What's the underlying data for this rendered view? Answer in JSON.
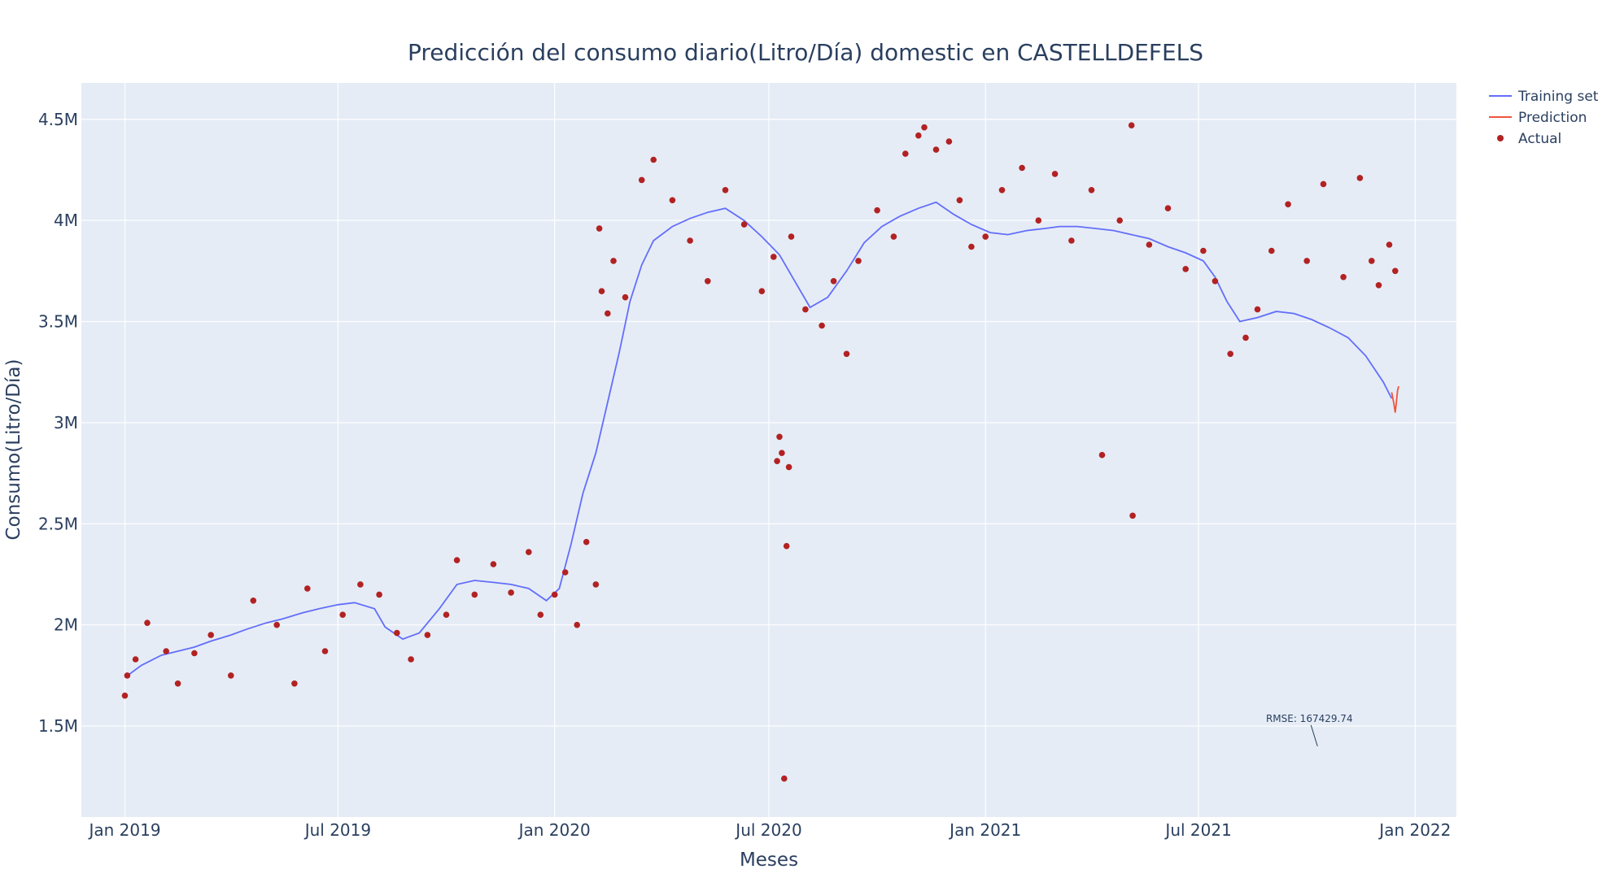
{
  "chart_data": {
    "type": "line",
    "title": "Predicción del consumo diario(Litro/Día) domestic en CASTELLDEFELS",
    "xlabel": "Meses",
    "ylabel": "Consumo(Litro/Día)",
    "x_range": [
      "2018-11-25",
      "2022-02-05"
    ],
    "y_range": [
      1050000,
      4680000
    ],
    "x_ticks": [
      {
        "date": "2019-01-01",
        "label": "Jan 2019"
      },
      {
        "date": "2019-07-01",
        "label": "Jul 2019"
      },
      {
        "date": "2020-01-01",
        "label": "Jan 2020"
      },
      {
        "date": "2020-07-01",
        "label": "Jul 2020"
      },
      {
        "date": "2021-01-01",
        "label": "Jan 2021"
      },
      {
        "date": "2021-07-01",
        "label": "Jul 2021"
      },
      {
        "date": "2022-01-01",
        "label": "Jan 2022"
      }
    ],
    "y_ticks": [
      {
        "value": 1500000,
        "label": "1.5M"
      },
      {
        "value": 2000000,
        "label": "2M"
      },
      {
        "value": 2500000,
        "label": "2.5M"
      },
      {
        "value": 3000000,
        "label": "3M"
      },
      {
        "value": 3500000,
        "label": "3.5M"
      },
      {
        "value": 4000000,
        "label": "4M"
      },
      {
        "value": 4500000,
        "label": "4.5M"
      }
    ],
    "grid": true,
    "legend_position": "top-right",
    "series": [
      {
        "name": "Training set",
        "mode": "lines",
        "color": "#636efa",
        "points": [
          [
            "2019-01-01",
            1740000
          ],
          [
            "2019-01-15",
            1800000
          ],
          [
            "2019-02-01",
            1850000
          ],
          [
            "2019-02-15",
            1870000
          ],
          [
            "2019-03-01",
            1890000
          ],
          [
            "2019-03-15",
            1920000
          ],
          [
            "2019-04-01",
            1950000
          ],
          [
            "2019-04-15",
            1980000
          ],
          [
            "2019-05-01",
            2010000
          ],
          [
            "2019-05-15",
            2030000
          ],
          [
            "2019-06-01",
            2060000
          ],
          [
            "2019-06-15",
            2080000
          ],
          [
            "2019-07-01",
            2100000
          ],
          [
            "2019-07-15",
            2110000
          ],
          [
            "2019-08-01",
            2080000
          ],
          [
            "2019-08-10",
            1990000
          ],
          [
            "2019-08-25",
            1930000
          ],
          [
            "2019-09-08",
            1960000
          ],
          [
            "2019-09-25",
            2080000
          ],
          [
            "2019-10-10",
            2200000
          ],
          [
            "2019-10-25",
            2220000
          ],
          [
            "2019-11-10",
            2210000
          ],
          [
            "2019-11-25",
            2200000
          ],
          [
            "2019-12-10",
            2180000
          ],
          [
            "2019-12-25",
            2120000
          ],
          [
            "2020-01-05",
            2180000
          ],
          [
            "2020-01-15",
            2400000
          ],
          [
            "2020-01-25",
            2650000
          ],
          [
            "2020-02-05",
            2850000
          ],
          [
            "2020-02-15",
            3100000
          ],
          [
            "2020-02-25",
            3350000
          ],
          [
            "2020-03-05",
            3600000
          ],
          [
            "2020-03-15",
            3780000
          ],
          [
            "2020-03-25",
            3900000
          ],
          [
            "2020-04-10",
            3970000
          ],
          [
            "2020-04-25",
            4010000
          ],
          [
            "2020-05-10",
            4040000
          ],
          [
            "2020-05-25",
            4060000
          ],
          [
            "2020-06-10",
            4000000
          ],
          [
            "2020-06-25",
            3920000
          ],
          [
            "2020-07-10",
            3830000
          ],
          [
            "2020-07-25",
            3680000
          ],
          [
            "2020-08-05",
            3570000
          ],
          [
            "2020-08-20",
            3620000
          ],
          [
            "2020-09-05",
            3750000
          ],
          [
            "2020-09-20",
            3890000
          ],
          [
            "2020-10-05",
            3970000
          ],
          [
            "2020-10-20",
            4020000
          ],
          [
            "2020-11-05",
            4060000
          ],
          [
            "2020-11-20",
            4090000
          ],
          [
            "2020-12-05",
            4030000
          ],
          [
            "2020-12-20",
            3980000
          ],
          [
            "2021-01-05",
            3940000
          ],
          [
            "2021-01-20",
            3930000
          ],
          [
            "2021-02-05",
            3950000
          ],
          [
            "2021-02-20",
            3960000
          ],
          [
            "2021-03-05",
            3970000
          ],
          [
            "2021-03-20",
            3970000
          ],
          [
            "2021-04-05",
            3960000
          ],
          [
            "2021-04-20",
            3950000
          ],
          [
            "2021-05-05",
            3930000
          ],
          [
            "2021-05-20",
            3910000
          ],
          [
            "2021-06-05",
            3870000
          ],
          [
            "2021-06-20",
            3840000
          ],
          [
            "2021-07-05",
            3800000
          ],
          [
            "2021-07-15",
            3720000
          ],
          [
            "2021-07-25",
            3600000
          ],
          [
            "2021-08-05",
            3500000
          ],
          [
            "2021-08-20",
            3520000
          ],
          [
            "2021-09-05",
            3550000
          ],
          [
            "2021-09-20",
            3540000
          ],
          [
            "2021-10-05",
            3510000
          ],
          [
            "2021-10-20",
            3470000
          ],
          [
            "2021-11-05",
            3420000
          ],
          [
            "2021-11-20",
            3330000
          ],
          [
            "2021-12-05",
            3200000
          ],
          [
            "2021-12-12",
            3120000
          ]
        ]
      },
      {
        "name": "Prediction",
        "mode": "lines",
        "color": "#ef553b",
        "points": [
          [
            "2021-12-12",
            3150000
          ],
          [
            "2021-12-13",
            3120000
          ],
          [
            "2021-12-14",
            3090000
          ],
          [
            "2021-12-15",
            3050000
          ],
          [
            "2021-12-16",
            3100000
          ],
          [
            "2021-12-17",
            3160000
          ],
          [
            "2021-12-18",
            3180000
          ]
        ]
      },
      {
        "name": "Actual",
        "mode": "markers",
        "color": "#b22222",
        "points": [
          [
            "2019-01-01",
            1650000
          ],
          [
            "2019-01-03",
            1750000
          ],
          [
            "2019-01-10",
            1830000
          ],
          [
            "2019-01-20",
            2010000
          ],
          [
            "2019-02-05",
            1870000
          ],
          [
            "2019-02-15",
            1710000
          ],
          [
            "2019-03-01",
            1860000
          ],
          [
            "2019-03-15",
            1950000
          ],
          [
            "2019-04-01",
            1750000
          ],
          [
            "2019-04-20",
            2120000
          ],
          [
            "2019-05-10",
            2000000
          ],
          [
            "2019-05-25",
            1710000
          ],
          [
            "2019-06-05",
            2180000
          ],
          [
            "2019-06-20",
            1870000
          ],
          [
            "2019-07-05",
            2050000
          ],
          [
            "2019-07-20",
            2200000
          ],
          [
            "2019-08-05",
            2150000
          ],
          [
            "2019-08-20",
            1960000
          ],
          [
            "2019-09-01",
            1830000
          ],
          [
            "2019-09-15",
            1950000
          ],
          [
            "2019-10-01",
            2050000
          ],
          [
            "2019-10-10",
            2320000
          ],
          [
            "2019-10-25",
            2150000
          ],
          [
            "2019-11-10",
            2300000
          ],
          [
            "2019-11-25",
            2160000
          ],
          [
            "2019-12-10",
            2360000
          ],
          [
            "2019-12-20",
            2050000
          ],
          [
            "2020-01-01",
            2150000
          ],
          [
            "2020-01-10",
            2260000
          ],
          [
            "2020-01-20",
            2000000
          ],
          [
            "2020-01-28",
            2410000
          ],
          [
            "2020-02-05",
            2200000
          ],
          [
            "2020-02-08",
            3960000
          ],
          [
            "2020-02-10",
            3650000
          ],
          [
            "2020-02-15",
            3540000
          ],
          [
            "2020-02-20",
            3800000
          ],
          [
            "2020-03-01",
            3620000
          ],
          [
            "2020-03-15",
            4200000
          ],
          [
            "2020-03-25",
            4300000
          ],
          [
            "2020-04-10",
            4100000
          ],
          [
            "2020-04-25",
            3900000
          ],
          [
            "2020-05-10",
            3700000
          ],
          [
            "2020-05-25",
            4150000
          ],
          [
            "2020-06-10",
            3980000
          ],
          [
            "2020-06-25",
            3650000
          ],
          [
            "2020-07-05",
            3820000
          ],
          [
            "2020-07-08",
            2810000
          ],
          [
            "2020-07-10",
            2930000
          ],
          [
            "2020-07-12",
            2850000
          ],
          [
            "2020-07-14",
            1240000
          ],
          [
            "2020-07-16",
            2390000
          ],
          [
            "2020-07-18",
            2780000
          ],
          [
            "2020-07-20",
            3920000
          ],
          [
            "2020-08-01",
            3560000
          ],
          [
            "2020-08-15",
            3480000
          ],
          [
            "2020-08-25",
            3700000
          ],
          [
            "2020-09-05",
            3340000
          ],
          [
            "2020-09-15",
            3800000
          ],
          [
            "2020-10-01",
            4050000
          ],
          [
            "2020-10-15",
            3920000
          ],
          [
            "2020-10-25",
            4330000
          ],
          [
            "2020-11-05",
            4420000
          ],
          [
            "2020-11-10",
            4460000
          ],
          [
            "2020-11-20",
            4350000
          ],
          [
            "2020-12-01",
            4390000
          ],
          [
            "2020-12-10",
            4100000
          ],
          [
            "2020-12-20",
            3870000
          ],
          [
            "2021-01-01",
            3920000
          ],
          [
            "2021-01-15",
            4150000
          ],
          [
            "2021-02-01",
            4260000
          ],
          [
            "2021-02-15",
            4000000
          ],
          [
            "2021-03-01",
            4230000
          ],
          [
            "2021-03-15",
            3900000
          ],
          [
            "2021-04-01",
            4150000
          ],
          [
            "2021-04-10",
            2840000
          ],
          [
            "2021-04-25",
            4000000
          ],
          [
            "2021-05-05",
            4470000
          ],
          [
            "2021-05-06",
            2540000
          ],
          [
            "2021-05-20",
            3880000
          ],
          [
            "2021-06-05",
            4060000
          ],
          [
            "2021-06-20",
            3760000
          ],
          [
            "2021-07-05",
            3850000
          ],
          [
            "2021-07-15",
            3700000
          ],
          [
            "2021-07-28",
            3340000
          ],
          [
            "2021-08-10",
            3420000
          ],
          [
            "2021-08-20",
            3560000
          ],
          [
            "2021-09-01",
            3850000
          ],
          [
            "2021-09-15",
            4080000
          ],
          [
            "2021-10-01",
            3800000
          ],
          [
            "2021-10-15",
            4180000
          ],
          [
            "2021-11-01",
            3720000
          ],
          [
            "2021-11-15",
            4210000
          ],
          [
            "2021-11-25",
            3800000
          ],
          [
            "2021-12-01",
            3680000
          ],
          [
            "2021-12-10",
            3880000
          ],
          [
            "2021-12-15",
            3750000
          ]
        ]
      }
    ],
    "annotations": [
      {
        "text": "RMSE: 167429.74",
        "x": "2021-10-10",
        "y": 1400000
      }
    ]
  }
}
